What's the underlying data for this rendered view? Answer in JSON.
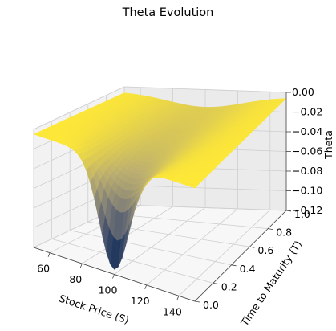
{
  "chart_data": {
    "type": "surface3d",
    "title": "Theta Evolution",
    "xlabel": "Stock Price (S)",
    "ylabel": "Time to Maturity (T)",
    "zlabel": "Theta",
    "xlim": [
      50,
      150
    ],
    "ylim": [
      0,
      1
    ],
    "zlim": [
      -0.12,
      0
    ],
    "xticks": [
      "60",
      "80",
      "100",
      "120",
      "140"
    ],
    "yticks": [
      "0.0",
      "0.2",
      "0.4",
      "0.6",
      "0.8",
      "1.0"
    ],
    "zticks": [
      "0.00",
      "−0.02",
      "−0.04",
      "−0.06",
      "−0.08",
      "−0.10",
      "−0.12"
    ],
    "colormap": "cividis",
    "grid": true,
    "surface_shape": {
      "strike": 100,
      "min_theta": -0.115,
      "theta_far_from_strike": -0.005,
      "theta_at_strike_T1": -0.02
    }
  }
}
